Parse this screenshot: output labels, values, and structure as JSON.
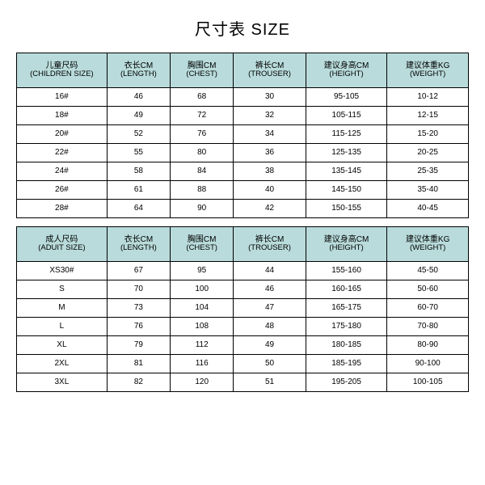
{
  "title": "尺寸表 SIZE",
  "header_bg": "#b9dbdb",
  "border_color": "#000000",
  "children": {
    "columns": [
      {
        "cn": "儿童尺码",
        "en": "(CHILDREN SIZE)"
      },
      {
        "cn": "衣长CM",
        "en": "(LENGTH)"
      },
      {
        "cn": "胸围CM",
        "en": "(CHEST)"
      },
      {
        "cn": "裤长CM",
        "en": "(TROUSER)"
      },
      {
        "cn": "建议身高CM",
        "en": "(HEIGHT)"
      },
      {
        "cn": "建议体重KG",
        "en": "(WEIGHT)"
      }
    ],
    "rows": [
      [
        "16#",
        "46",
        "68",
        "30",
        "95-105",
        "10-12"
      ],
      [
        "18#",
        "49",
        "72",
        "32",
        "105-115",
        "12-15"
      ],
      [
        "20#",
        "52",
        "76",
        "34",
        "115-125",
        "15-20"
      ],
      [
        "22#",
        "55",
        "80",
        "36",
        "125-135",
        "20-25"
      ],
      [
        "24#",
        "58",
        "84",
        "38",
        "135-145",
        "25-35"
      ],
      [
        "26#",
        "61",
        "88",
        "40",
        "145-150",
        "35-40"
      ],
      [
        "28#",
        "64",
        "90",
        "42",
        "150-155",
        "40-45"
      ]
    ]
  },
  "adult": {
    "columns": [
      {
        "cn": "成人尺码",
        "en": "(ADUIT SIZE)"
      },
      {
        "cn": "衣长CM",
        "en": "(LENGTH)"
      },
      {
        "cn": "胸围CM",
        "en": "(CHEST)"
      },
      {
        "cn": "裤长CM",
        "en": "(TROUSER)"
      },
      {
        "cn": "建议身高CM",
        "en": "(HEIGHT)"
      },
      {
        "cn": "建议体重KG",
        "en": "(WEIGHT)"
      }
    ],
    "rows": [
      [
        "XS30#",
        "67",
        "95",
        "44",
        "155-160",
        "45-50"
      ],
      [
        "S",
        "70",
        "100",
        "46",
        "160-165",
        "50-60"
      ],
      [
        "M",
        "73",
        "104",
        "47",
        "165-175",
        "60-70"
      ],
      [
        "L",
        "76",
        "108",
        "48",
        "175-180",
        "70-80"
      ],
      [
        "XL",
        "79",
        "112",
        "49",
        "180-185",
        "80-90"
      ],
      [
        "2XL",
        "81",
        "116",
        "50",
        "185-195",
        "90-100"
      ],
      [
        "3XL",
        "82",
        "120",
        "51",
        "195-205",
        "100-105"
      ]
    ]
  }
}
